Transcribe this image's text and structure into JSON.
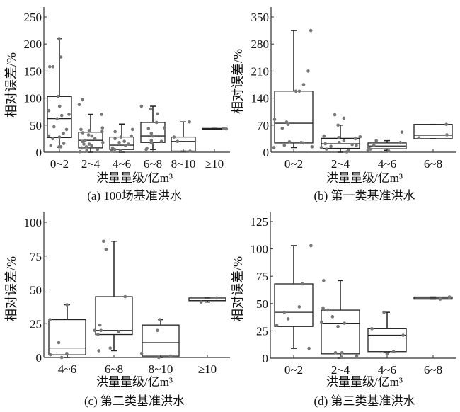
{
  "chart_data": [
    {
      "type": "box",
      "caption": "(a) 100场基准洪水",
      "xlabel": "洪量量级/亿m³",
      "ylabel": "相对误差/%",
      "ylim": [
        0,
        250
      ],
      "yticks": [
        0,
        50,
        100,
        150,
        200,
        250
      ],
      "categories": [
        "0~2",
        "2~4",
        "4~6",
        "6~8",
        "8~10",
        "≥10"
      ],
      "boxes": [
        {
          "min": 9,
          "q1": 27,
          "median": 62,
          "q3": 103,
          "max": 210,
          "points": [
            210,
            176,
            158,
            158,
            103,
            85,
            77,
            70,
            68,
            62,
            47,
            42,
            35,
            30,
            28,
            25,
            16,
            12,
            10,
            10
          ]
        },
        {
          "min": 0,
          "q1": 8,
          "median": 22,
          "q3": 37,
          "max": 70,
          "points": [
            97,
            88,
            70,
            45,
            42,
            40,
            38,
            36,
            32,
            30,
            25,
            22,
            20,
            18,
            15,
            15,
            12,
            10,
            8,
            5,
            3,
            2,
            1
          ]
        },
        {
          "min": 0,
          "q1": 5,
          "median": 13,
          "q3": 28,
          "max": 52,
          "points": [
            42,
            38,
            30,
            28,
            25,
            20,
            18,
            15,
            12,
            8,
            5,
            3,
            2
          ]
        },
        {
          "min": 5,
          "q1": 18,
          "median": 30,
          "q3": 55,
          "max": 85,
          "points": [
            85,
            80,
            71,
            55,
            45,
            44,
            35,
            30,
            22,
            20,
            18,
            17,
            7,
            5
          ]
        },
        {
          "min": 2,
          "q1": 2,
          "median": 20,
          "q3": 28,
          "max": 56,
          "points": [
            56,
            28,
            20,
            2
          ]
        },
        {
          "min": 42,
          "q1": 42,
          "median": 43,
          "q3": 44,
          "max": 44,
          "points": [
            44,
            43
          ]
        }
      ]
    },
    {
      "type": "box",
      "caption": "(b) 第一类基准洪水",
      "xlabel": "洪量量级/亿m³",
      "ylabel": "相对误差/%",
      "ylim": [
        0,
        350
      ],
      "yticks": [
        0,
        70,
        140,
        210,
        280,
        350
      ],
      "categories": [
        "0~2",
        "2~4",
        "4~6",
        "6~8"
      ],
      "boxes": [
        {
          "min": 12,
          "q1": 24,
          "median": 75,
          "q3": 158,
          "max": 315,
          "points": [
            315,
            210,
            175,
            158,
            158,
            85,
            78,
            72,
            62,
            27,
            25,
            24,
            18,
            14,
            12
          ]
        },
        {
          "min": 0,
          "q1": 10,
          "median": 22,
          "q3": 36,
          "max": 70,
          "points": [
            97,
            88,
            70,
            42,
            40,
            38,
            35,
            30,
            25,
            22,
            20,
            18,
            15,
            12,
            8,
            5,
            3,
            1
          ]
        },
        {
          "min": 5,
          "q1": 9,
          "median": 16,
          "q3": 24,
          "max": 30,
          "points": [
            52,
            30,
            25,
            18,
            12,
            8,
            5,
            3
          ]
        },
        {
          "min": 35,
          "q1": 35,
          "median": 44,
          "q3": 72,
          "max": 72,
          "points": [
            72,
            45,
            37
          ]
        }
      ]
    },
    {
      "type": "box",
      "caption": "(c) 第二类基准洪水",
      "xlabel": "洪量量级/亿m³",
      "ylabel": "相对误差/%",
      "ylim": [
        0,
        100
      ],
      "yticks": [
        0,
        25,
        50,
        75,
        100
      ],
      "categories": [
        "4~6",
        "6~8",
        "8~10",
        "≥10"
      ],
      "boxes": [
        {
          "min": 0,
          "q1": 2,
          "median": 7,
          "q3": 28,
          "max": 39,
          "points": [
            39,
            28,
            11,
            3,
            2,
            0
          ]
        },
        {
          "min": 5,
          "q1": 17,
          "median": 20,
          "q3": 45,
          "max": 86,
          "points": [
            86,
            80,
            45,
            24,
            20,
            20,
            19,
            17,
            7,
            5
          ]
        },
        {
          "min": 0,
          "q1": 1,
          "median": 11,
          "q3": 24,
          "max": 28,
          "points": [
            28,
            20,
            3,
            1,
            0
          ]
        },
        {
          "min": 41,
          "q1": 42,
          "median": 42,
          "q3": 44,
          "max": 44,
          "points": [
            44,
            41
          ]
        }
      ]
    },
    {
      "type": "box",
      "caption": "(d) 第三类基准洪水",
      "xlabel": "洪量量级/亿m³",
      "ylabel": "相对误差/%",
      "ylim": [
        0,
        125
      ],
      "yticks": [
        0,
        25,
        50,
        75,
        100,
        125
      ],
      "categories": [
        "0~2",
        "2~4",
        "4~6",
        "6~8"
      ],
      "boxes": [
        {
          "min": 9,
          "q1": 29,
          "median": 42,
          "q3": 68,
          "max": 103,
          "points": [
            103,
            68,
            47,
            42,
            36,
            30,
            9
          ]
        },
        {
          "min": 0,
          "q1": 4,
          "median": 32,
          "q3": 44,
          "max": 71,
          "points": [
            71,
            46,
            44,
            38,
            33,
            32,
            29,
            5,
            5,
            2,
            1
          ]
        },
        {
          "min": 5,
          "q1": 6,
          "median": 21,
          "q3": 27,
          "max": 42,
          "points": [
            42,
            27,
            21,
            6,
            4
          ]
        },
        {
          "min": 54,
          "q1": 54,
          "median": 55,
          "q3": 56,
          "max": 56,
          "points": [
            56,
            54
          ]
        }
      ]
    }
  ],
  "colors": {
    "box": "#222222",
    "points": "#777777"
  }
}
